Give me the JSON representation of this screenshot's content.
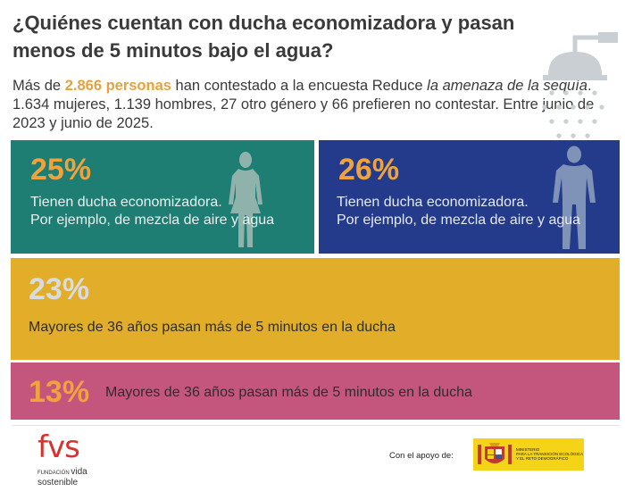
{
  "header": {
    "title": "¿Quiénes cuentan con ducha economizadora y pasan menos de 5 minutos bajo el agua?",
    "intro_prefix": "Más de ",
    "intro_highlight": "2.866 personas",
    "intro_middle": " han contestado a la encuesta Reduce ",
    "intro_italic": "la amenaza de la sequía",
    "intro_suffix": ". 1.634 mujeres, 1.139 hombres, 27 otro género y 66 prefieren no contestar. Entre junio de 2023 y junio de 2025."
  },
  "cards": [
    {
      "percent": "25%",
      "line1": "Tienen ducha economizadora.",
      "line2": "Por ejemplo, de mezcla de aire y agua",
      "color": "#1e7e74",
      "icon": "woman-silhouette-icon"
    },
    {
      "percent": "26%",
      "line1": "Tienen ducha economizadora.",
      "line2": "Por ejemplo, de mezcla de aire y agua",
      "color": "#243b8c",
      "icon": "man-silhouette-icon"
    },
    {
      "percent": "23%",
      "text": "Mayores de 36 años pasan más de 5 minutos en la ducha",
      "color": "#e2ae2a"
    },
    {
      "percent": "13%",
      "text": "Mayores de 36 años pasan más de 5 minutos en la ducha",
      "color": "#c4567e"
    }
  ],
  "footer": {
    "logo_mark": "fvs",
    "logo_word1": "FUNDACIÓN",
    "logo_word2": "vida",
    "logo_word3": "sostenible",
    "support_label": "Con el apoyo de:",
    "ministry_line1": "MINISTERIO",
    "ministry_line2": "PARA LA TRANSICIÓN ECOLÓGICA",
    "ministry_line3": "Y EL RETO DEMOGRÁFICO"
  },
  "icons": [
    "shower-icon",
    "woman-silhouette-icon",
    "man-silhouette-icon",
    "fvs-logo",
    "spain-coat-of-arms-icon"
  ],
  "colors": {
    "highlight": "#e5a23e",
    "teal": "#1e7e74",
    "navy": "#243b8c",
    "mustard": "#e2ae2a",
    "pink": "#c4567e",
    "fvs_red": "#d8322e"
  }
}
